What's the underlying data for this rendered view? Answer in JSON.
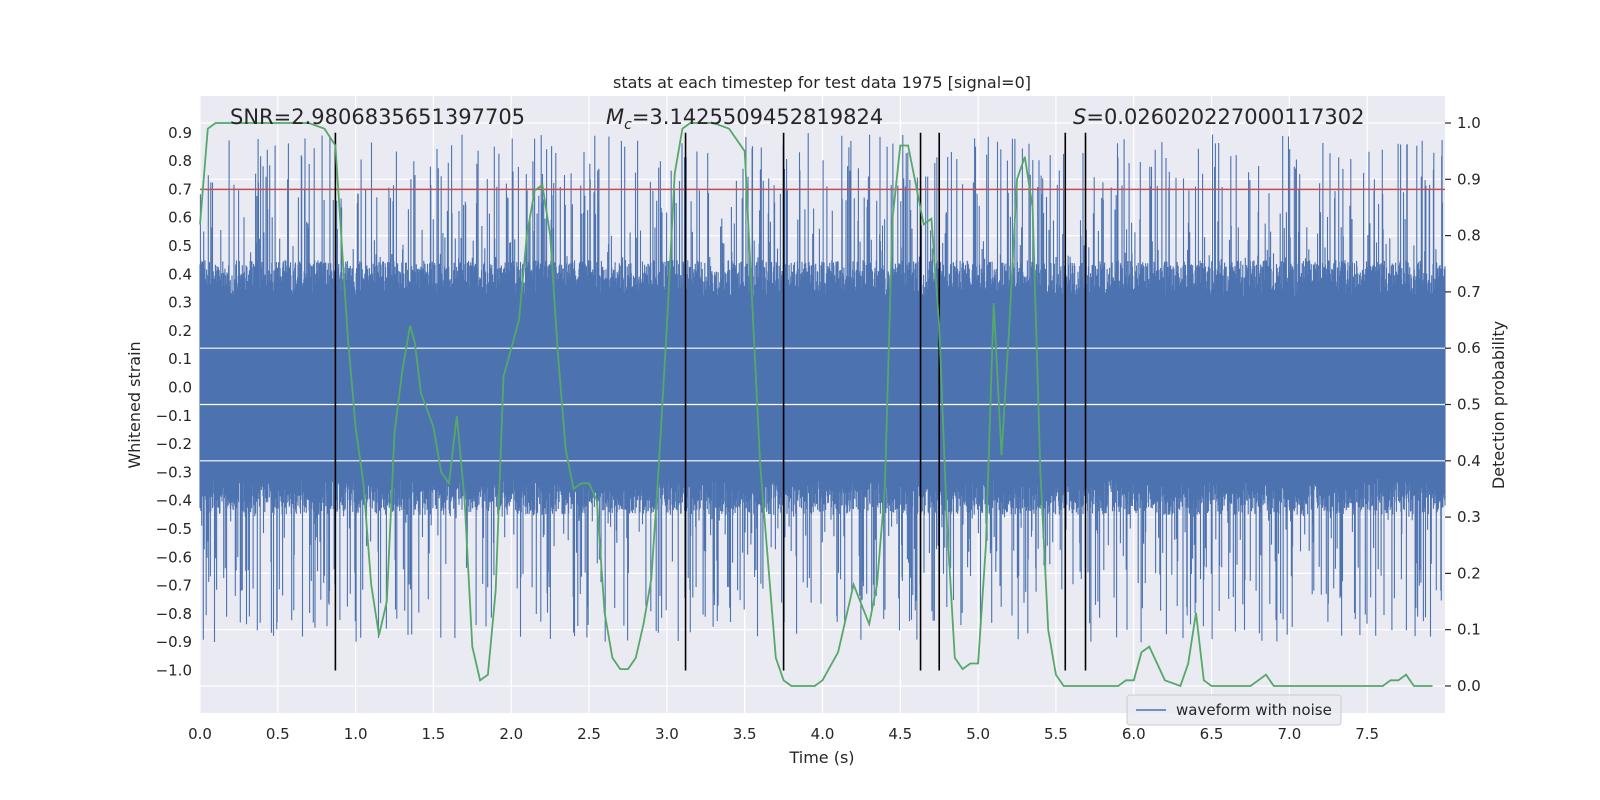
{
  "chart_data": {
    "type": "line",
    "title": "stats at each timestep for test data 1975 [signal=0]",
    "xlabel": "Time (s)",
    "ylabel_left": "Whitened strain",
    "ylabel_right": "Detection probability",
    "xlim": [
      0.0,
      8.0
    ],
    "ylim_left": [
      -1.15,
      1.03
    ],
    "ylim_right": [
      -0.048,
      1.048
    ],
    "x_ticks": [
      0.0,
      0.5,
      1.0,
      1.5,
      2.0,
      2.5,
      3.0,
      3.5,
      4.0,
      4.5,
      5.0,
      5.5,
      6.0,
      6.5,
      7.0,
      7.5
    ],
    "x_tick_labels": [
      "0.0",
      "0.5",
      "1.0",
      "1.5",
      "2.0",
      "2.5",
      "3.0",
      "3.5",
      "4.0",
      "4.5",
      "5.0",
      "5.5",
      "6.0",
      "6.5",
      "7.0",
      "7.5"
    ],
    "y_left_ticks": [
      0.9,
      0.8,
      0.7,
      0.6,
      0.5,
      0.4,
      0.3,
      0.2,
      0.1,
      0.0,
      -0.1,
      -0.2,
      -0.3,
      -0.4,
      -0.5,
      -0.6,
      -0.7,
      -0.8,
      -0.9,
      -1.0
    ],
    "y_left_tick_labels": [
      "0.9",
      "0.8",
      "0.7",
      "0.6",
      "0.5",
      "0.4",
      "0.3",
      "0.2",
      "0.1",
      "0.0",
      "−0.1",
      "−0.2",
      "−0.3",
      "−0.4",
      "−0.5",
      "−0.6",
      "−0.7",
      "−0.8",
      "−0.9",
      "−1.0"
    ],
    "y_right_ticks": [
      1.0,
      0.9,
      0.8,
      0.7,
      0.6,
      0.5,
      0.4,
      0.3,
      0.2,
      0.1,
      0.0
    ],
    "y_right_tick_labels": [
      "1.0",
      "0.9",
      "0.8",
      "0.7",
      "0.6",
      "0.5",
      "0.4",
      "0.3",
      "0.2",
      "0.1",
      "0.0"
    ],
    "annotations": {
      "snr": "SNR=2.9806835651397705",
      "mc_symbol": "M",
      "mc_subscript": "c",
      "mc_value": "=3.1425509452819824",
      "s_symbol": "S",
      "s_value": "=0.026020227000117302"
    },
    "threshold": 0.7,
    "legend": {
      "location": "lower-right",
      "entries": [
        "waveform with noise"
      ]
    },
    "waveform": {
      "name": "waveform with noise",
      "color": "#4c72b0",
      "core_amplitude": 0.32,
      "burst_amplitude_range": [
        0.4,
        0.9
      ],
      "duration_s": 8.0
    },
    "vertical_lines_x": [
      0.87,
      3.12,
      3.75,
      4.63,
      4.75,
      5.56,
      5.69
    ],
    "detection_probability": {
      "name": "Detection probability",
      "color": "#55a868",
      "x": [
        0.0,
        0.05,
        0.1,
        0.2,
        0.3,
        0.4,
        0.5,
        0.6,
        0.7,
        0.8,
        0.87,
        0.95,
        1.0,
        1.05,
        1.1,
        1.15,
        1.2,
        1.25,
        1.3,
        1.35,
        1.38,
        1.42,
        1.5,
        1.55,
        1.6,
        1.65,
        1.7,
        1.75,
        1.8,
        1.85,
        1.9,
        1.95,
        2.0,
        2.05,
        2.1,
        2.15,
        2.2,
        2.25,
        2.3,
        2.35,
        2.4,
        2.45,
        2.5,
        2.55,
        2.6,
        2.65,
        2.7,
        2.75,
        2.8,
        2.85,
        2.9,
        2.95,
        3.0,
        3.05,
        3.1,
        3.15,
        3.2,
        3.25,
        3.3,
        3.4,
        3.5,
        3.6,
        3.7,
        3.75,
        3.8,
        3.85,
        3.9,
        3.95,
        4.0,
        4.1,
        4.2,
        4.3,
        4.35,
        4.4,
        4.45,
        4.5,
        4.55,
        4.6,
        4.65,
        4.7,
        4.75,
        4.8,
        4.85,
        4.9,
        4.95,
        5.0,
        5.05,
        5.1,
        5.15,
        5.2,
        5.25,
        5.3,
        5.35,
        5.4,
        5.45,
        5.5,
        5.55,
        5.6,
        5.65,
        5.7,
        5.75,
        5.8,
        5.85,
        5.9,
        5.95,
        6.0,
        6.05,
        6.1,
        6.2,
        6.3,
        6.35,
        6.4,
        6.45,
        6.5,
        6.55,
        6.6,
        6.65,
        6.7,
        6.75,
        6.8,
        6.85,
        6.9,
        6.95,
        7.0,
        7.1,
        7.2,
        7.3,
        7.4,
        7.5,
        7.6,
        7.65,
        7.7,
        7.75,
        7.8,
        7.85,
        7.92
      ],
      "values": [
        0.82,
        0.99,
        1.0,
        1.0,
        1.0,
        1.0,
        1.0,
        1.0,
        1.0,
        0.99,
        0.96,
        0.62,
        0.46,
        0.36,
        0.18,
        0.09,
        0.15,
        0.45,
        0.56,
        0.64,
        0.61,
        0.52,
        0.46,
        0.38,
        0.36,
        0.48,
        0.33,
        0.07,
        0.01,
        0.02,
        0.17,
        0.55,
        0.6,
        0.65,
        0.8,
        0.88,
        0.89,
        0.8,
        0.59,
        0.42,
        0.35,
        0.36,
        0.36,
        0.33,
        0.13,
        0.05,
        0.03,
        0.03,
        0.05,
        0.11,
        0.19,
        0.4,
        0.64,
        0.91,
        0.99,
        1.0,
        1.0,
        1.0,
        1.0,
        0.99,
        0.95,
        0.39,
        0.05,
        0.01,
        0.0,
        0.0,
        0.0,
        0.0,
        0.01,
        0.06,
        0.18,
        0.11,
        0.18,
        0.35,
        0.83,
        0.96,
        0.96,
        0.89,
        0.82,
        0.83,
        0.64,
        0.29,
        0.05,
        0.03,
        0.04,
        0.04,
        0.25,
        0.68,
        0.41,
        0.64,
        0.9,
        0.94,
        0.85,
        0.38,
        0.1,
        0.02,
        0.0,
        0.0,
        0.0,
        0.0,
        0.0,
        0.0,
        0.0,
        0.0,
        0.01,
        0.01,
        0.06,
        0.07,
        0.01,
        0.0,
        0.04,
        0.13,
        0.01,
        0.0,
        0.0,
        0.0,
        0.0,
        0.0,
        0.0,
        0.01,
        0.02,
        0.0,
        0.0,
        0.0,
        0.0,
        0.0,
        0.0,
        0.0,
        0.0,
        0.0,
        0.01,
        0.01,
        0.02,
        0.0,
        0.0,
        0.0
      ]
    },
    "colors": {
      "background": "#eaeaf2",
      "grid": "#ffffff",
      "threshold": "#c44e52",
      "vline": "#000000"
    }
  }
}
